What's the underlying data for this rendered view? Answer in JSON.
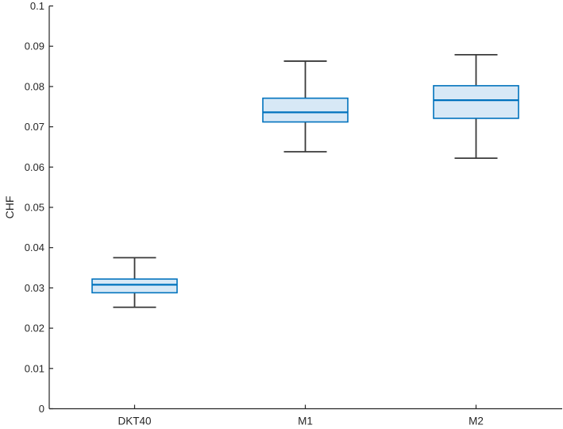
{
  "chart_data": {
    "type": "box",
    "title": "",
    "xlabel": "",
    "ylabel": "CHF",
    "ylim": [
      0,
      0.1
    ],
    "ytick_values": [
      0,
      0.01,
      0.02,
      0.03,
      0.04,
      0.05,
      0.06,
      0.07,
      0.08,
      0.09,
      0.1
    ],
    "ytick_labels": [
      "0",
      "0.01",
      "0.02",
      "0.03",
      "0.04",
      "0.05",
      "0.06",
      "0.07",
      "0.08",
      "0.09",
      "0.1"
    ],
    "categories": [
      "DKT40",
      "M1",
      "M2"
    ],
    "series": [
      {
        "label": "DKT40",
        "whisker_low": 0.0252,
        "q1": 0.0288,
        "median": 0.0308,
        "q3": 0.0322,
        "whisker_high": 0.0375
      },
      {
        "label": "M1",
        "whisker_low": 0.0638,
        "q1": 0.0712,
        "median": 0.0736,
        "q3": 0.0771,
        "whisker_high": 0.0863
      },
      {
        "label": "M2",
        "whisker_low": 0.0622,
        "q1": 0.0721,
        "median": 0.0766,
        "q3": 0.0802,
        "whisker_high": 0.0879
      }
    ],
    "grid": false,
    "axes_box": false,
    "legend_position": "none",
    "colors": {
      "box_edge": "#0072BD",
      "box_fill": "#D7E8F6",
      "median_line": "#0072BD",
      "whisker": "#3A3A3A",
      "axis": "#262626",
      "tick_text": "#262626",
      "background": "#FFFFFF"
    }
  }
}
